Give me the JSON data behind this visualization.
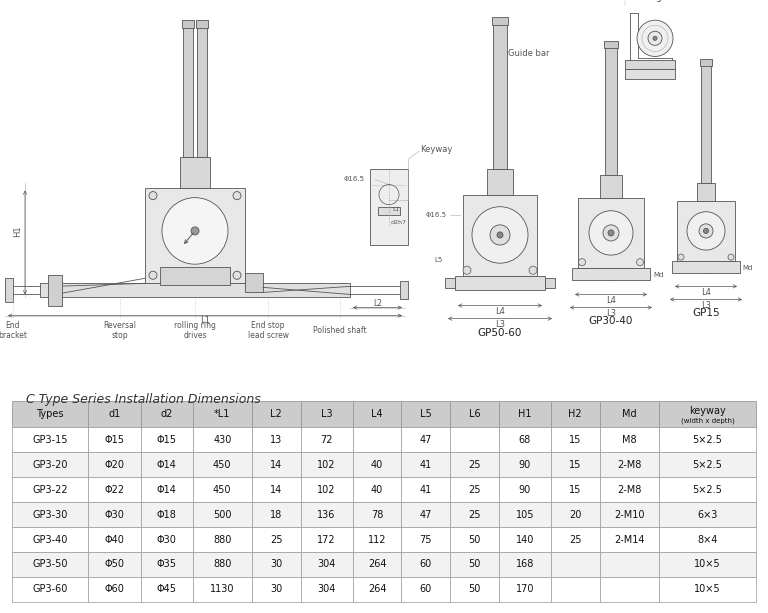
{
  "title": "C Type Series Installation Dimensions",
  "columns": [
    "Types",
    "d1",
    "d2",
    "*L1",
    "L2",
    "L3",
    "L4",
    "L5",
    "L6",
    "H1",
    "H2",
    "Md",
    "keyway"
  ],
  "rows": [
    [
      "GP3-15",
      "Φ15",
      "Φ15",
      "430",
      "13",
      "72",
      "",
      "47",
      "",
      "68",
      "15",
      "M8",
      "5×2.5"
    ],
    [
      "GP3-20",
      "Φ20",
      "Φ14",
      "450",
      "14",
      "102",
      "40",
      "41",
      "25",
      "90",
      "15",
      "2-M8",
      "5×2.5"
    ],
    [
      "GP3-22",
      "Φ22",
      "Φ14",
      "450",
      "14",
      "102",
      "40",
      "41",
      "25",
      "90",
      "15",
      "2-M8",
      "5×2.5"
    ],
    [
      "GP3-30",
      "Φ30",
      "Φ18",
      "500",
      "18",
      "136",
      "78",
      "47",
      "25",
      "105",
      "20",
      "2-M10",
      "6×3"
    ],
    [
      "GP3-40",
      "Φ40",
      "Φ30",
      "880",
      "25",
      "172",
      "112",
      "75",
      "50",
      "140",
      "25",
      "2-M14",
      "8×4"
    ],
    [
      "GP3-50",
      "Φ50",
      "Φ35",
      "880",
      "30",
      "304",
      "264",
      "60",
      "50",
      "168",
      "",
      "",
      "10×5"
    ],
    [
      "GP3-60",
      "Φ60",
      "Φ45",
      "1130",
      "30",
      "304",
      "264",
      "60",
      "50",
      "170",
      "",
      "",
      "10×5"
    ]
  ],
  "bg_color": "#ffffff",
  "header_bg": "#cccccc",
  "row_bg_odd": "#f2f2f2",
  "row_bg_even": "#ffffff",
  "border_color": "#999999",
  "text_color": "#111111",
  "lc": "#555555",
  "lc2": "#aaaaaa",
  "col_ratios": [
    1.1,
    0.75,
    0.75,
    0.85,
    0.7,
    0.75,
    0.7,
    0.7,
    0.7,
    0.75,
    0.7,
    0.85,
    1.4
  ]
}
